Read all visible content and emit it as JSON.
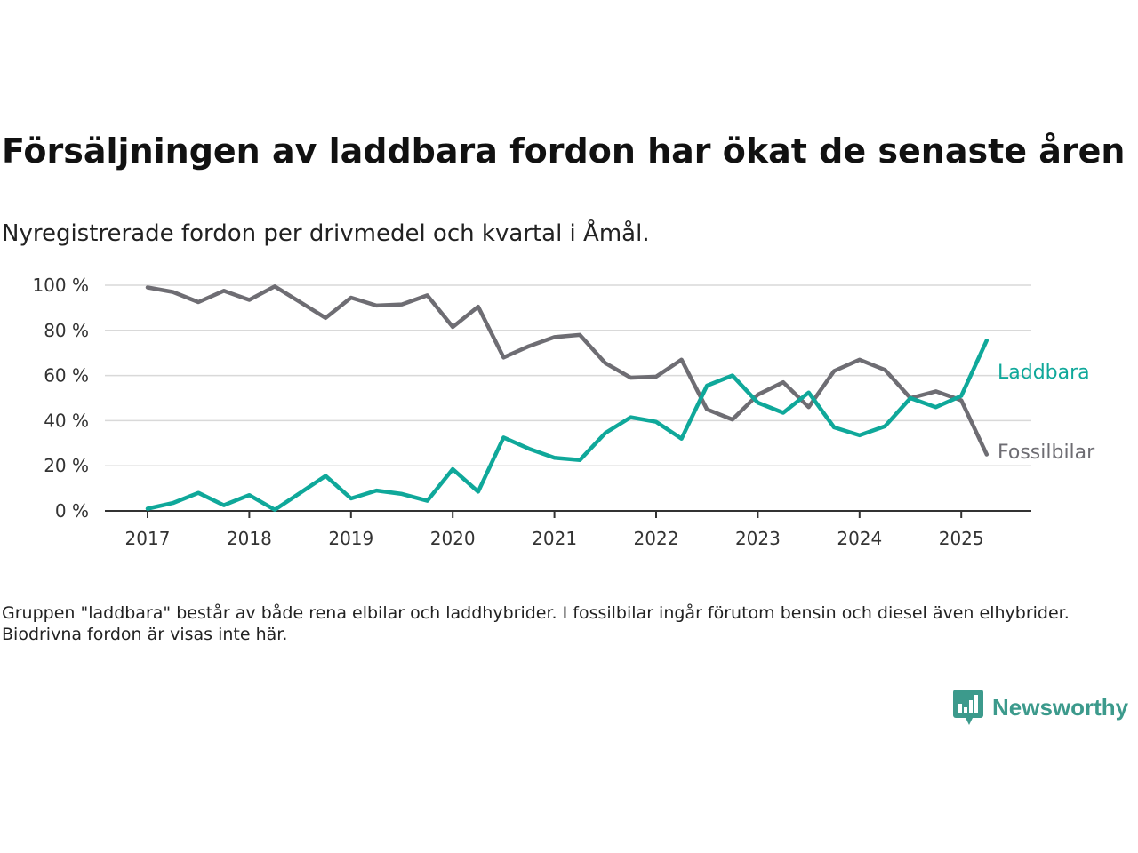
{
  "chart_data": {
    "type": "line",
    "title": "Försäljningen av laddbara fordon har ökat de senaste åren",
    "subtitle": "Nyregistrerade fordon per drivmedel och kvartal i Åmål.",
    "note": "Gruppen \"laddbara\" består av både rena elbilar och laddhybrider. I fossilbilar ingår förutom bensin och diesel även elhybrider. Biodrivna fordon är visas inte här.",
    "ylim": [
      0,
      100
    ],
    "y_ticks": [
      0,
      20,
      40,
      60,
      80,
      100
    ],
    "y_tick_labels": [
      "0 %",
      "20 %",
      "40 %",
      "60 %",
      "80 %",
      "100 %"
    ],
    "x_ticks": [
      "2017",
      "2018",
      "2019",
      "2020",
      "2021",
      "2022",
      "2023",
      "2024",
      "2025"
    ],
    "grid": true,
    "x": [
      "2017 Q1",
      "2017 Q2",
      "2017 Q3",
      "2017 Q4",
      "2018 Q1",
      "2018 Q2",
      "2018 Q3",
      "2018 Q4",
      "2019 Q1",
      "2019 Q2",
      "2019 Q3",
      "2019 Q4",
      "2020 Q1",
      "2020 Q2",
      "2020 Q3",
      "2020 Q4",
      "2021 Q1",
      "2021 Q2",
      "2021 Q3",
      "2021 Q4",
      "2022 Q1",
      "2022 Q2",
      "2022 Q3",
      "2022 Q4",
      "2023 Q1",
      "2023 Q2",
      "2023 Q3",
      "2023 Q4",
      "2024 Q1",
      "2024 Q2",
      "2024 Q3",
      "2024 Q4",
      "2025 Q1",
      "2025 Q2"
    ],
    "series": [
      {
        "name": "Laddbara",
        "color": "#0fa89a",
        "values": [
          1,
          3.5,
          8,
          2.5,
          7,
          0.5,
          8,
          15.5,
          5.5,
          9,
          7.5,
          4.5,
          18.5,
          8.5,
          32.5,
          27.5,
          23.5,
          22.5,
          34.5,
          41.5,
          39.5,
          32,
          55.5,
          60,
          48,
          43.5,
          52.5,
          37,
          33.5,
          37.5,
          50,
          46,
          51,
          75.5
        ]
      },
      {
        "name": "Fossilbilar",
        "color": "#6e6d73",
        "values": [
          99,
          97,
          92.5,
          97.5,
          93.5,
          99.5,
          92.5,
          85.5,
          94.5,
          91,
          91.5,
          95.5,
          81.5,
          90.5,
          68,
          73,
          77,
          78,
          65.5,
          59,
          59.5,
          67,
          45,
          40.5,
          51.5,
          57,
          46,
          62,
          67,
          62.5,
          50,
          53,
          49,
          25
        ]
      }
    ]
  },
  "brand": {
    "name": "Newsworthy",
    "color": "#3c9a8c",
    "icon": "bar-chart-speech-icon"
  }
}
